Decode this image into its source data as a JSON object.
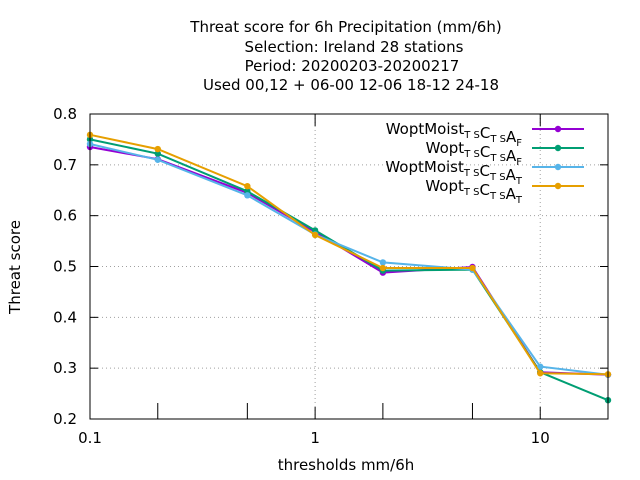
{
  "chart_data": {
    "type": "line",
    "title_lines": [
      "Threat score  for 6h Precipitation (mm/6h)",
      "Selection: Ireland      28 stations",
      "Period: 20200203-20200217",
      "Used  00,12  + 06-00 12-06 18-12 24-18"
    ],
    "xlabel": "thresholds mm/6h",
    "ylabel": "Threat score",
    "x_scale": "log",
    "xlim": [
      0.1,
      20
    ],
    "ylim": [
      0.2,
      0.8
    ],
    "x_ticks": [
      {
        "v": 0.1,
        "label": "0.1"
      },
      {
        "v": 1,
        "label": "1"
      },
      {
        "v": 10,
        "label": "10"
      }
    ],
    "x_minor_ticks": [
      0.2,
      0.5,
      2,
      5,
      20
    ],
    "y_ticks": [
      {
        "v": 0.2,
        "label": "0.2"
      },
      {
        "v": 0.3,
        "label": "0.3"
      },
      {
        "v": 0.4,
        "label": "0.4"
      },
      {
        "v": 0.5,
        "label": "0.5"
      },
      {
        "v": 0.6,
        "label": "0.6"
      },
      {
        "v": 0.7,
        "label": "0.7"
      },
      {
        "v": 0.8,
        "label": "0.8"
      }
    ],
    "grid": true,
    "legend_position": "top-right",
    "series": [
      {
        "name": "WoptMoist",
        "sub1": "T S",
        "mid": "C",
        "sub2": "T S",
        "end": "A",
        "sub3": "F",
        "color": "#9400d3",
        "x": [
          0.1,
          0.2,
          0.5,
          1,
          2,
          5,
          10,
          20
        ],
        "y": [
          0.735,
          0.711,
          0.645,
          0.568,
          0.488,
          0.499,
          0.292,
          0.287
        ]
      },
      {
        "name": "Wopt",
        "sub1": "T S",
        "mid": "C",
        "sub2": "T S",
        "end": "A",
        "sub3": "F",
        "color": "#009e73",
        "x": [
          0.1,
          0.2,
          0.5,
          1,
          2,
          5,
          10,
          20
        ],
        "y": [
          0.75,
          0.722,
          0.648,
          0.571,
          0.492,
          0.494,
          0.292,
          0.237
        ]
      },
      {
        "name": "WoptMoist",
        "sub1": "T S",
        "mid": "C",
        "sub2": "T S",
        "end": "A",
        "sub3": "T",
        "color": "#56b4e9",
        "x": [
          0.1,
          0.2,
          0.5,
          1,
          2,
          5,
          10,
          20
        ],
        "y": [
          0.741,
          0.71,
          0.64,
          0.563,
          0.508,
          0.494,
          0.303,
          0.287
        ]
      },
      {
        "name": "Wopt",
        "sub1": "T S",
        "mid": "C",
        "sub2": "T S",
        "end": "A",
        "sub3": "T",
        "color": "#e69f00",
        "x": [
          0.1,
          0.2,
          0.5,
          1,
          2,
          5,
          10,
          20
        ],
        "y": [
          0.759,
          0.731,
          0.658,
          0.562,
          0.497,
          0.497,
          0.29,
          0.288
        ]
      }
    ]
  }
}
